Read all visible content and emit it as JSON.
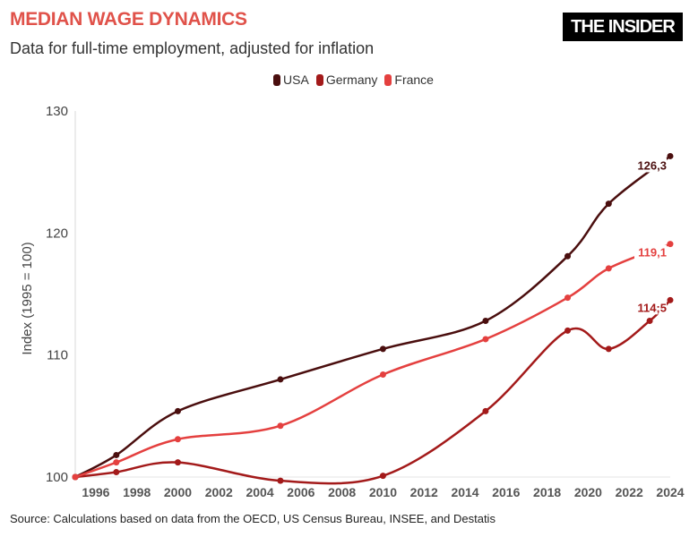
{
  "header": {
    "title": "MEDIAN WAGE DYNAMICS",
    "subtitle": "Data for full-time employment, adjusted for inflation",
    "logo": "THE INSIDER"
  },
  "source": "Source: Calculations based on data from the OECD, US Census Bureau, INSEE, and Destatis",
  "chart_data": {
    "type": "line",
    "title": "MEDIAN WAGE DYNAMICS",
    "ylabel": "Index (1995 = 100)",
    "xlabel": "",
    "xlim": [
      1995,
      2024
    ],
    "ylim": [
      100,
      130
    ],
    "xticks": [
      "1996",
      "1998",
      "2000",
      "2002",
      "2004",
      "2006",
      "2008",
      "2010",
      "2012",
      "2014",
      "2016",
      "2018",
      "2020",
      "2022",
      "2024"
    ],
    "yticks": [
      "100",
      "110",
      "120",
      "130"
    ],
    "grid": false,
    "legend_position": "top-center",
    "series": [
      {
        "name": "USA",
        "color": "#4a0e0e",
        "x": [
          1995,
          1997,
          2000,
          2005,
          2010,
          2015,
          2019,
          2021,
          2024
        ],
        "values": [
          100,
          101.8,
          105.4,
          108.0,
          110.5,
          112.8,
          118.1,
          122.4,
          126.3
        ],
        "end_label": "126,3"
      },
      {
        "name": "Germany",
        "color": "#a31a1a",
        "x": [
          1995,
          1997,
          2000,
          2005,
          2010,
          2015,
          2019,
          2021,
          2023,
          2024
        ],
        "values": [
          100,
          100.4,
          101.2,
          99.7,
          100.1,
          105.4,
          112.0,
          110.5,
          112.8,
          114.5
        ],
        "end_label": "114;5"
      },
      {
        "name": "France",
        "color": "#e4403f",
        "x": [
          1995,
          1997,
          2000,
          2005,
          2010,
          2015,
          2019,
          2021,
          2024
        ],
        "values": [
          100,
          101.2,
          103.1,
          104.2,
          108.4,
          111.3,
          114.7,
          117.1,
          119.1
        ],
        "end_label": "119,1"
      }
    ]
  }
}
